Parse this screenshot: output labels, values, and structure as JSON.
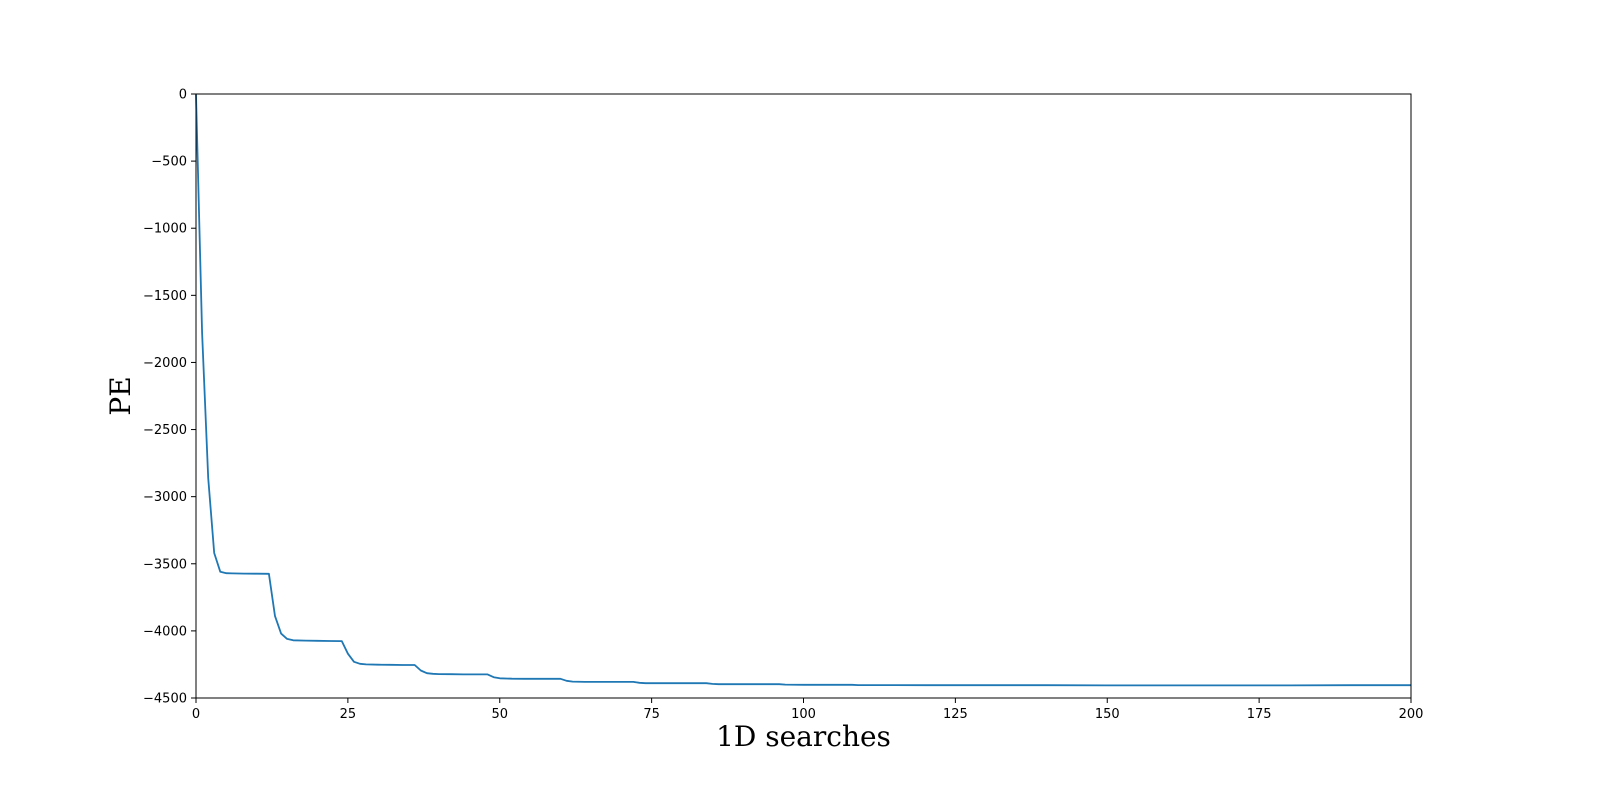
{
  "chart_data": {
    "type": "line",
    "title": "",
    "xlabel": "1D searches",
    "ylabel": "PE",
    "xlim": [
      0,
      200
    ],
    "ylim": [
      -4500,
      0
    ],
    "xticks": [
      0,
      25,
      50,
      75,
      100,
      125,
      150,
      175,
      200
    ],
    "yticks": [
      0,
      -500,
      -1000,
      -1500,
      -2000,
      -2500,
      -3000,
      -3500,
      -4000,
      -4500
    ],
    "grid": false,
    "legend": "none",
    "series": [
      {
        "color": "#1f77b4",
        "x": [
          0,
          1,
          2,
          3,
          4,
          5,
          6,
          8,
          10,
          12,
          13,
          14,
          15,
          16,
          18,
          20,
          22,
          24,
          25,
          26,
          27,
          28,
          30,
          32,
          34,
          36,
          37,
          38,
          39,
          40,
          42,
          44,
          46,
          48,
          49,
          50,
          52,
          54,
          56,
          58,
          60,
          61,
          62,
          64,
          66,
          68,
          70,
          72,
          73,
          74,
          76,
          78,
          80,
          82,
          84,
          85,
          86,
          88,
          90,
          92,
          94,
          96,
          97,
          100,
          104,
          108,
          109,
          115,
          120,
          130,
          140,
          150,
          160,
          170,
          180,
          190,
          200
        ],
        "y": [
          -5,
          -1780,
          -2860,
          -3420,
          -3560,
          -3570,
          -3572,
          -3573,
          -3574,
          -3575,
          -3890,
          -4020,
          -4060,
          -4070,
          -4072,
          -4074,
          -4075,
          -4076,
          -4170,
          -4230,
          -4245,
          -4250,
          -4252,
          -4253,
          -4254,
          -4254,
          -4295,
          -4315,
          -4320,
          -4322,
          -4323,
          -4324,
          -4324,
          -4324,
          -4345,
          -4353,
          -4356,
          -4357,
          -4357,
          -4357,
          -4357,
          -4372,
          -4378,
          -4380,
          -4380,
          -4380,
          -4380,
          -4380,
          -4387,
          -4390,
          -4390,
          -4390,
          -4390,
          -4390,
          -4390,
          -4395,
          -4397,
          -4397,
          -4397,
          -4397,
          -4397,
          -4397,
          -4400,
          -4402,
          -4402,
          -4402,
          -4404,
          -4404,
          -4405,
          -4405,
          -4405,
          -4406,
          -4406,
          -4406,
          -4406,
          -4405,
          -4405
        ]
      }
    ]
  }
}
